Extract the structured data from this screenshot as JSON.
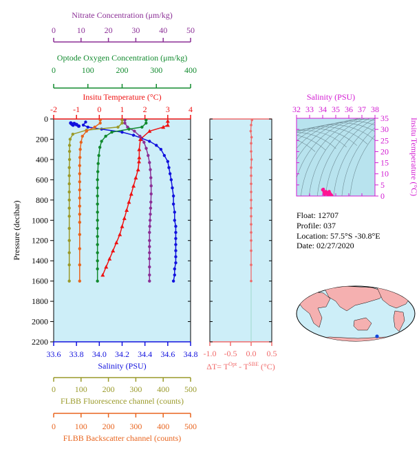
{
  "chart_data": [
    {
      "type": "line",
      "panel": "profile",
      "ylabel": "Pressure (decibar)",
      "y_ticks": [
        0,
        200,
        400,
        600,
        800,
        1000,
        1200,
        1400,
        1600,
        1800,
        2000,
        2200
      ],
      "ylim": [
        0,
        2200
      ],
      "y_inverted": true,
      "grid": false,
      "axes": {
        "nitrate": {
          "label": "Nitrate Concentration (μm/kg)",
          "ticks": [
            0,
            10,
            20,
            30,
            40,
            50
          ],
          "range": [
            0,
            50
          ],
          "color": "#8b2f96"
        },
        "oxygen": {
          "label": "Optode Oxygen Concentration (μm/kg)",
          "ticks": [
            0,
            100,
            200,
            300,
            400
          ],
          "range": [
            0,
            400
          ],
          "color": "#118a2e"
        },
        "temperature": {
          "label": "Insitu Temperature (°C)",
          "ticks": [
            -2,
            -1,
            0,
            1,
            2,
            3,
            4
          ],
          "range": [
            -2,
            4
          ],
          "color": "#ee1111"
        },
        "salinity": {
          "label": "Salinity (PSU)",
          "ticks": [
            "33.6",
            "33.8",
            "34.0",
            "34.2",
            "34.4",
            "34.6",
            "34.8"
          ],
          "range": [
            33.6,
            34.8
          ],
          "color": "#1111dd"
        },
        "fluorescence": {
          "label": "FLBB Fluorescence channel (counts)",
          "ticks": [
            0,
            100,
            200,
            300,
            400,
            500
          ],
          "range": [
            0,
            500
          ],
          "color": "#9a9a2a"
        },
        "backscatter": {
          "label": "FLBB Backscatter channel (counts)",
          "ticks": [
            0,
            100,
            200,
            300,
            400,
            500
          ],
          "range": [
            0,
            500
          ],
          "color": "#e8641e"
        }
      },
      "series": [
        {
          "axis": "salinity",
          "color": "#1111dd",
          "marker": "circle",
          "x": [
            33.88,
            33.86,
            33.9,
            34.02,
            34.2,
            34.3,
            34.37,
            34.44,
            34.5,
            34.54,
            34.57,
            34.6,
            34.61,
            34.62,
            34.63,
            34.64,
            34.65,
            34.65,
            34.66,
            34.66,
            34.67,
            34.67,
            34.67,
            34.67,
            34.67,
            34.67,
            34.67,
            34.66,
            34.66,
            34.65
          ],
          "y": [
            30,
            60,
            80,
            100,
            130,
            160,
            190,
            220,
            260,
            300,
            360,
            420,
            480,
            540,
            600,
            680,
            760,
            840,
            920,
            1000,
            1060,
            1120,
            1180,
            1240,
            1300,
            1360,
            1420,
            1480,
            1540,
            1600
          ]
        },
        {
          "axis": "temperature",
          "color": "#ee1111",
          "marker": "triangle",
          "x": [
            3.0,
            3.0,
            2.8,
            2.2,
            1.8,
            1.75,
            1.75,
            1.74,
            1.7,
            1.6,
            1.5,
            1.4,
            1.3,
            1.2,
            1.1,
            1.0,
            0.9,
            0.75,
            0.6,
            0.45,
            0.3,
            0.15
          ],
          "y": [
            20,
            60,
            80,
            120,
            200,
            300,
            380,
            420,
            500,
            580,
            660,
            740,
            820,
            900,
            980,
            1060,
            1140,
            1220,
            1300,
            1380,
            1460,
            1540
          ]
        },
        {
          "axis": "nitrate",
          "color": "#8b2f96",
          "marker": "circle",
          "x": [
            26,
            26,
            27,
            29.5,
            31.5,
            33,
            33.8,
            34.5,
            35,
            35.3,
            35.5,
            35.6,
            35.6,
            35.5,
            35.4,
            35.3,
            35.2,
            35.1,
            35.0,
            35.0,
            35.0,
            35.0,
            35.0,
            35.0,
            35.0,
            35.0
          ],
          "y": [
            10,
            40,
            80,
            120,
            170,
            230,
            290,
            360,
            430,
            500,
            580,
            660,
            740,
            820,
            880,
            940,
            1000,
            1060,
            1120,
            1200,
            1260,
            1320,
            1380,
            1460,
            1540,
            1600
          ]
        },
        {
          "axis": "oxygen",
          "color": "#118a2e",
          "marker": "circle",
          "x": [
            270,
            270,
            258,
            220,
            170,
            152,
            140,
            135,
            132,
            130,
            129,
            128,
            128,
            128,
            128,
            128,
            128,
            128,
            128,
            128,
            128,
            128,
            128,
            128
          ],
          "y": [
            10,
            40,
            80,
            100,
            130,
            170,
            220,
            280,
            360,
            440,
            520,
            600,
            680,
            760,
            840,
            920,
            1000,
            1080,
            1160,
            1240,
            1320,
            1400,
            1480,
            1600
          ]
        },
        {
          "axis": "fluorescence",
          "color": "#9a9a2a",
          "marker": "circle",
          "x": [
            250,
            250,
            235,
            120,
            70,
            60,
            58,
            58,
            58,
            57,
            57,
            57,
            57,
            57,
            57,
            57,
            57,
            57,
            57,
            57,
            57
          ],
          "y": [
            10,
            40,
            80,
            110,
            150,
            200,
            260,
            320,
            400,
            480,
            560,
            640,
            720,
            800,
            880,
            960,
            1080,
            1200,
            1320,
            1440,
            1600
          ]
        },
        {
          "axis": "backscatter",
          "color": "#e8641e",
          "marker": "circle",
          "x": [
            170,
            170,
            150,
            120,
            105,
            100,
            97,
            96,
            95,
            95,
            95,
            95,
            95,
            95,
            95,
            95,
            95,
            95,
            95,
            95
          ],
          "y": [
            10,
            40,
            80,
            120,
            170,
            230,
            300,
            380,
            460,
            540,
            620,
            700,
            780,
            860,
            940,
            1020,
            1140,
            1280,
            1440,
            1600
          ]
        }
      ],
      "surface_cluster": {
        "axis": "salinity",
        "color": "#1111dd",
        "x": [
          33.75,
          33.76,
          33.77,
          33.78,
          33.8,
          33.82
        ],
        "y": [
          40,
          50,
          60,
          45,
          55,
          70
        ]
      }
    },
    {
      "type": "line",
      "panel": "delta_t",
      "xlabel_parts": {
        "a": "ΔT= T",
        "sup1": "Opt",
        "b": " - T",
        "sup2": "SBE",
        "c": " (°C)"
      },
      "x_ticks": [
        "-1.0",
        "-0.5",
        "0.0",
        "0.5"
      ],
      "xlim": [
        -1.0,
        0.5
      ],
      "ylim": [
        0,
        2200
      ],
      "color": "#f06a6a",
      "x": [
        0.02,
        0.0,
        -0.01,
        0.01,
        0.0,
        0.0,
        0.01,
        0.0,
        0.0,
        0.0,
        0.0,
        0.0,
        0.0,
        0.0,
        0.0,
        0.0,
        0.0,
        0.0,
        0.0,
        0.0
      ],
      "y": [
        10,
        60,
        120,
        180,
        240,
        320,
        400,
        480,
        560,
        640,
        720,
        800,
        880,
        960,
        1040,
        1120,
        1200,
        1300,
        1440,
        1600
      ]
    },
    {
      "type": "scatter",
      "panel": "ts_diagram",
      "title": "Salinity (PSU)",
      "x_ticks": [
        32,
        33,
        34,
        35,
        36,
        37,
        38
      ],
      "xlim": [
        32,
        38
      ],
      "ylabel": "Insitu Temperature (°C)",
      "y_ticks": [
        0,
        5,
        10,
        15,
        20,
        25,
        30,
        35
      ],
      "ylim": [
        0,
        35
      ],
      "color": "#ff1493",
      "x": [
        34.0,
        34.05,
        34.1,
        34.15,
        34.2,
        34.25,
        34.3,
        34.35,
        34.4,
        34.45,
        34.5,
        34.55,
        34.6,
        34.65,
        34.68
      ],
      "y": [
        2.8,
        3.0,
        1.8,
        0.8,
        1.2,
        2.0,
        1.5,
        1.0,
        0.5,
        1.5,
        2.0,
        1.2,
        0.8,
        0.5,
        0.3
      ]
    }
  ],
  "info": {
    "float": "Float:  12707",
    "profile": "Profile:  037",
    "location": "Location:  57.5°S  -30.8°E",
    "date": "Date:  02/27/2020"
  },
  "colors": {
    "panel_bg": "#cdeef8",
    "ts_bg": "#b8e3ee",
    "map_ocean": "#cdeef8",
    "map_land": "#f5b0b0",
    "ts_axis": "#d21ad2",
    "float_marker": "#1144dd"
  }
}
